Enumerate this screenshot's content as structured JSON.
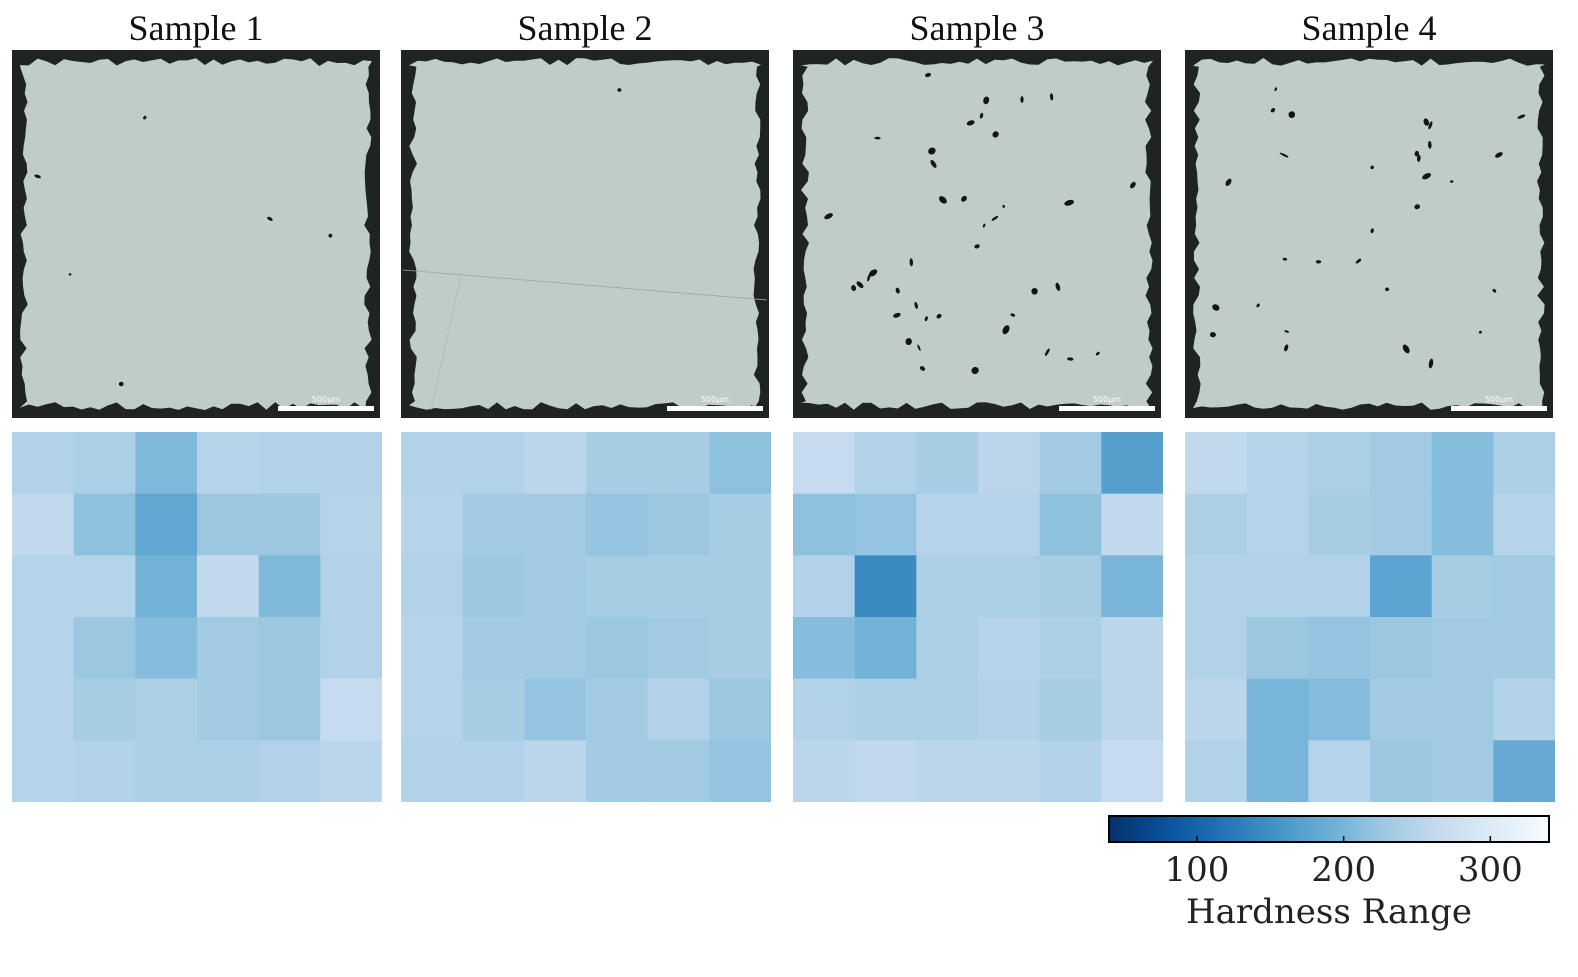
{
  "samples": [
    {
      "title": "Sample 1",
      "scale_label": "500µm"
    },
    {
      "title": "Sample 2",
      "scale_label": "500µm"
    },
    {
      "title": "Sample 3",
      "scale_label": "500µm"
    },
    {
      "title": "Sample 4",
      "scale_label": "500µm"
    }
  ],
  "chart_data": {
    "type": "heatmap",
    "colormap": "Blues_r",
    "vmin": 40,
    "vmax": 340,
    "colorbar": {
      "label": "Hardness Range",
      "ticks": [
        100,
        200,
        300
      ]
    },
    "grids": [
      {
        "name": "Sample 1",
        "values": [
          [
            245,
            240,
            205,
            250,
            245,
            245
          ],
          [
            260,
            215,
            180,
            225,
            225,
            250
          ],
          [
            250,
            250,
            195,
            260,
            205,
            245
          ],
          [
            250,
            225,
            210,
            230,
            225,
            245
          ],
          [
            250,
            235,
            240,
            230,
            225,
            265
          ],
          [
            250,
            245,
            240,
            240,
            245,
            255
          ]
        ]
      },
      {
        "name": "Sample 2",
        "values": [
          [
            245,
            245,
            255,
            235,
            235,
            215
          ],
          [
            250,
            230,
            230,
            220,
            225,
            235
          ],
          [
            245,
            225,
            230,
            235,
            235,
            235
          ],
          [
            250,
            230,
            230,
            225,
            230,
            235
          ],
          [
            250,
            235,
            220,
            230,
            245,
            225
          ],
          [
            245,
            245,
            255,
            230,
            230,
            220
          ]
        ]
      },
      {
        "name": "Sample 3",
        "values": [
          [
            265,
            245,
            235,
            255,
            230,
            170
          ],
          [
            215,
            220,
            250,
            250,
            215,
            260
          ],
          [
            245,
            145,
            240,
            240,
            235,
            200
          ],
          [
            210,
            195,
            240,
            250,
            240,
            255
          ],
          [
            245,
            240,
            240,
            245,
            235,
            255
          ],
          [
            255,
            260,
            255,
            255,
            245,
            265
          ]
        ]
      },
      {
        "name": "Sample 4",
        "values": [
          [
            260,
            250,
            240,
            230,
            210,
            240
          ],
          [
            240,
            250,
            235,
            230,
            210,
            250
          ],
          [
            245,
            245,
            245,
            175,
            235,
            230
          ],
          [
            245,
            225,
            220,
            225,
            230,
            230
          ],
          [
            255,
            200,
            210,
            230,
            230,
            245
          ],
          [
            245,
            200,
            250,
            225,
            230,
            185
          ]
        ]
      }
    ]
  }
}
